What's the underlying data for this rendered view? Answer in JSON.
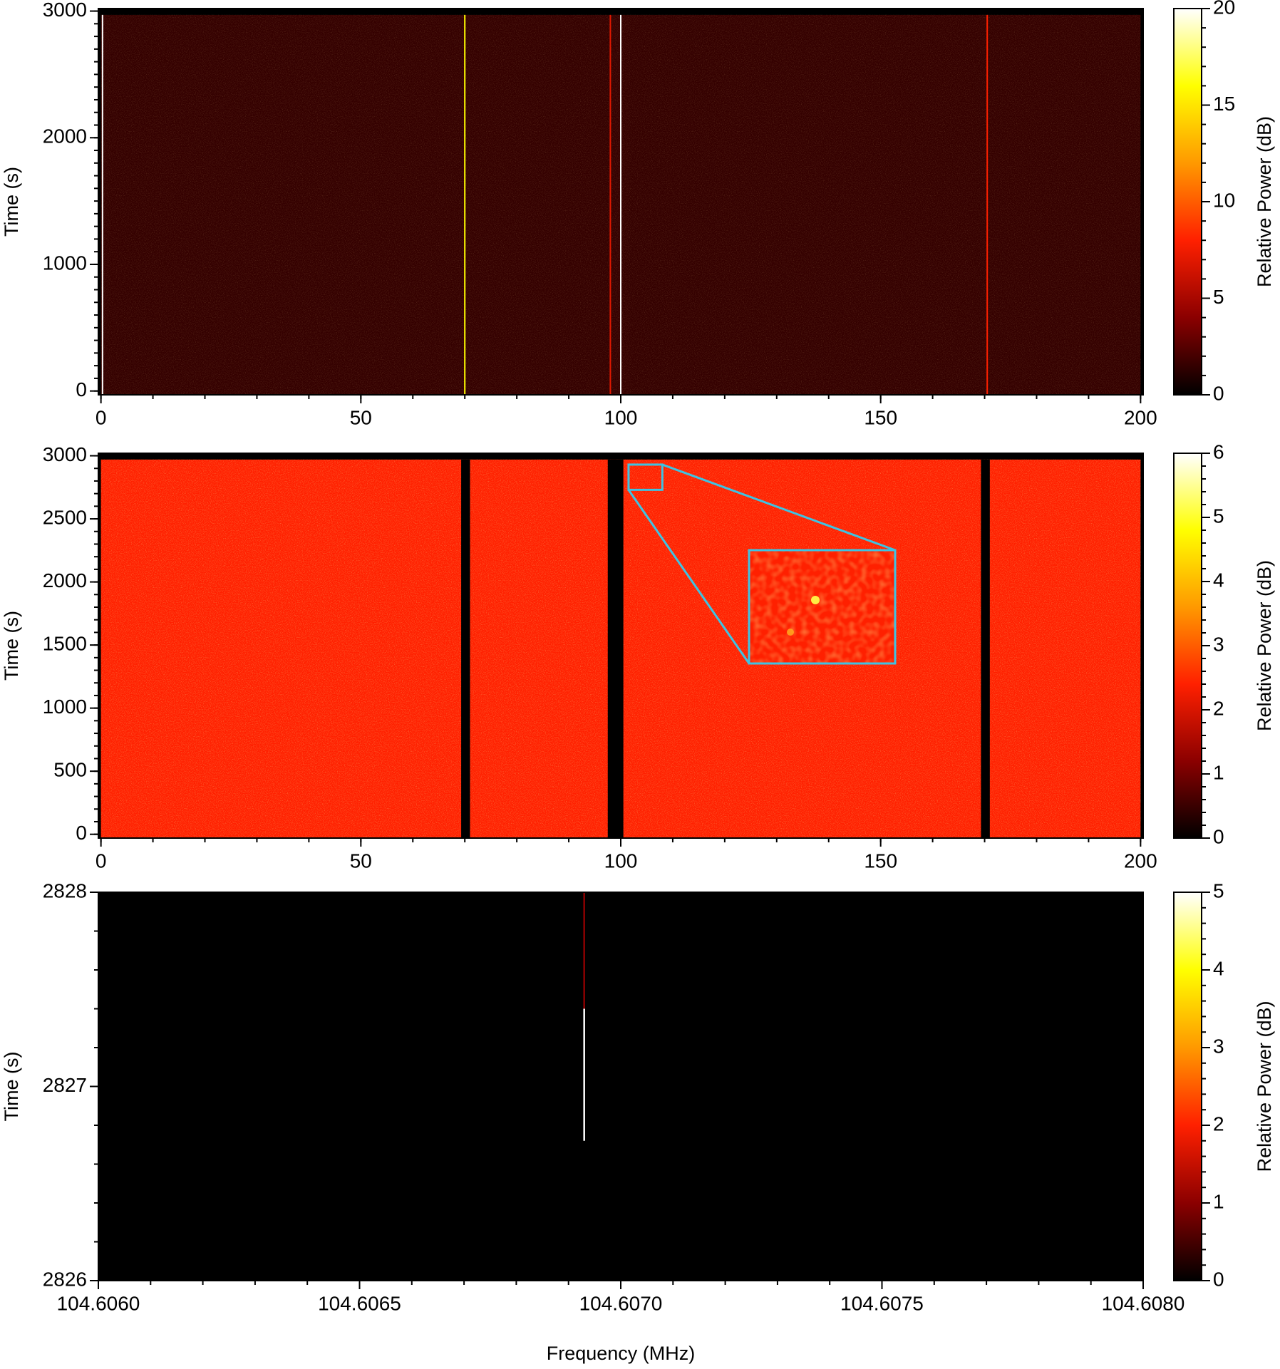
{
  "chart_data": [
    {
      "type": "heatmap",
      "y_label": "Time (s)",
      "colorbar_label": "Relative Power (dB)",
      "xlim": [
        -0.5,
        200.5
      ],
      "ylim": [
        -30,
        3020
      ],
      "xticks": [
        0,
        50,
        100,
        150,
        200
      ],
      "yticks": [
        0,
        1000,
        2000,
        3000
      ],
      "xminor": 10,
      "yminor": 100,
      "clim": [
        0,
        20
      ],
      "cticks": [
        0,
        5,
        10,
        15,
        20
      ],
      "cminor": 1,
      "colormap": [
        "#000000",
        "#8b0000",
        "#ff2000",
        "#ff9900",
        "#ffff00",
        "#ffffff"
      ],
      "data_extent": {
        "x": [
          0,
          200
        ],
        "y": [
          -30,
          2970
        ]
      },
      "background": 1.5,
      "lines": [
        {
          "x": 0.3,
          "value": 20
        },
        {
          "x": 70,
          "value": 16
        },
        {
          "x": 98,
          "value": 7
        },
        {
          "x": 100,
          "value": 20
        },
        {
          "x": 170.5,
          "value": 8
        }
      ]
    },
    {
      "type": "heatmap",
      "y_label": "Time (s)",
      "colorbar_label": "Relative Power (dB)",
      "xlim": [
        -0.5,
        200.5
      ],
      "ylim": [
        -30,
        3020
      ],
      "xticks": [
        0,
        50,
        100,
        150,
        200
      ],
      "yticks": [
        0,
        500,
        1000,
        1500,
        2000,
        2500,
        3000
      ],
      "xminor": 10,
      "yminor": 100,
      "clim": [
        0,
        6
      ],
      "cticks": [
        0,
        1,
        2,
        3,
        4,
        5,
        6
      ],
      "cminor": 0.2,
      "colormap": [
        "#000000",
        "#8b0000",
        "#ff2000",
        "#ff9900",
        "#ffff00",
        "#ffffff"
      ],
      "data_extent": {
        "x": [
          0,
          200
        ],
        "y": [
          -30,
          2970
        ]
      },
      "background": 2.4,
      "masked": [
        [
          69.3,
          71
        ],
        [
          97.5,
          100.5
        ],
        [
          169.3,
          171
        ]
      ],
      "zoom_region": {
        "x": [
          101.5,
          108
        ],
        "y": [
          2730,
          2930
        ]
      }
    },
    {
      "type": "heatmap",
      "x_label": "Frequency (MHz)",
      "y_label": "Time (s)",
      "colorbar_label": "Relative Power (dB)",
      "xlim": [
        104.606,
        104.608
      ],
      "ylim": [
        2826,
        2828
      ],
      "xticks": [
        {
          "value": 104.606,
          "label": "104.6060"
        },
        {
          "value": 104.6065,
          "label": "104.6065"
        },
        {
          "value": 104.607,
          "label": "104.6070"
        },
        {
          "value": 104.6075,
          "label": "104.6075"
        },
        {
          "value": 104.608,
          "label": "104.6080"
        }
      ],
      "yticks": [
        2826,
        2827,
        2828
      ],
      "xminor": 0.0001,
      "yminor": 0.2,
      "clim": [
        0,
        5
      ],
      "cticks": [
        0,
        1,
        2,
        3,
        4,
        5
      ],
      "cminor": 0.2,
      "colormap": [
        "#000000",
        "#8b0000",
        "#ff2000",
        "#ff9900",
        "#ffff00",
        "#ffffff"
      ],
      "data_extent": {
        "x": [
          104.606,
          104.608
        ],
        "y": [
          2826,
          2828
        ]
      },
      "background": 0,
      "segments": [
        {
          "x": 104.60693,
          "y": [
            2826.72,
            2827.4
          ],
          "value": 5
        },
        {
          "x": 104.60693,
          "y": [
            2827.4,
            2828
          ],
          "value": 1
        }
      ]
    }
  ]
}
